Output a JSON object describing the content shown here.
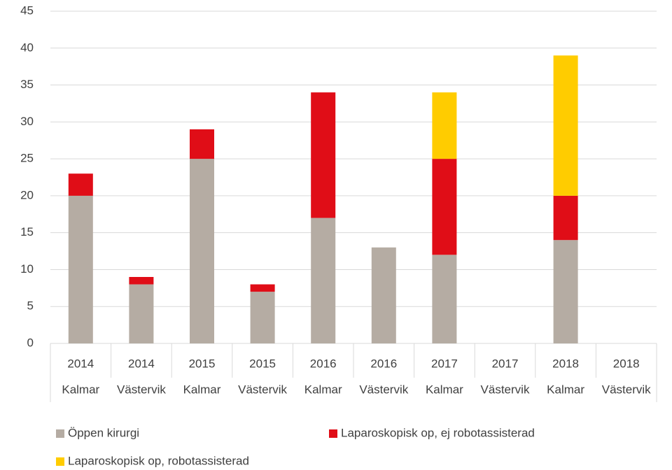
{
  "chart_data": {
    "type": "stacked_bar",
    "categories": [
      "2014",
      "2014",
      "2015",
      "2015",
      "2016",
      "2016",
      "2017",
      "2017",
      "2018",
      "2018"
    ],
    "subcategories": [
      "Kalmar",
      "Västervik",
      "Kalmar",
      "Västervik",
      "Kalmar",
      "Västervik",
      "Kalmar",
      "Västervik",
      "Kalmar",
      "Västervik"
    ],
    "series": [
      {
        "name": "Öppen kirurgi",
        "color": "#b5aca3",
        "values": [
          20,
          8,
          25,
          7,
          17,
          13,
          12,
          0,
          14,
          0
        ]
      },
      {
        "name": "Laparoskopisk op, ej robotassisterad",
        "color": "#e00d17",
        "values": [
          3,
          1,
          4,
          1,
          17,
          0,
          13,
          0,
          6,
          0
        ]
      },
      {
        "name": "Laparoskopisk op, robotassisterad",
        "color": "#ffcc00",
        "values": [
          0,
          0,
          0,
          0,
          0,
          0,
          9,
          0,
          19,
          0
        ]
      }
    ],
    "ylim": [
      0,
      45
    ],
    "yticks": [
      0,
      5,
      10,
      15,
      20,
      25,
      30,
      35,
      40,
      45
    ],
    "grid": true,
    "legend": "bottom"
  }
}
